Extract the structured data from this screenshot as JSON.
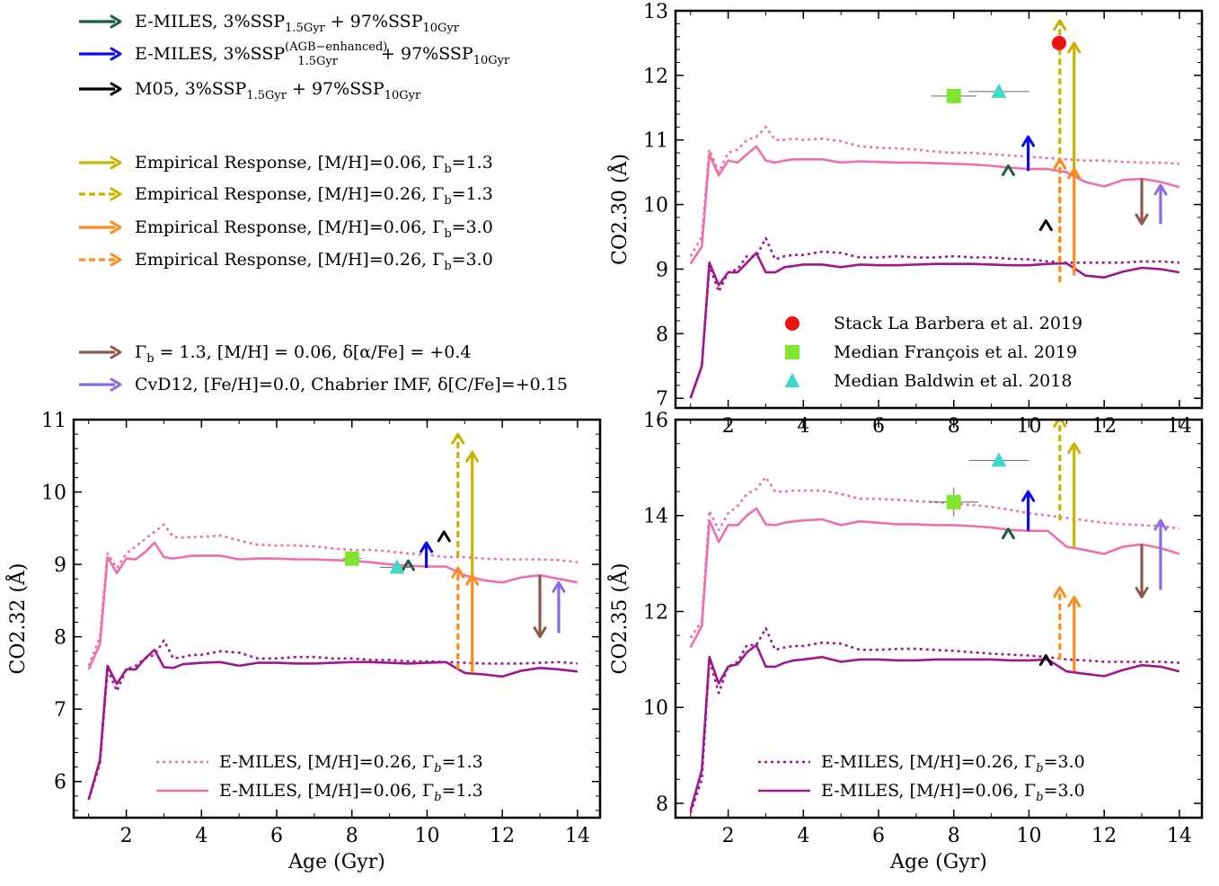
{
  "colors": {
    "emiles_solid_pink": "#f06fab",
    "emiles_dotted_pink": "#f06fab",
    "emiles_solid_purple": "#a0168c",
    "emiles_dotted_purple": "#a0168c",
    "emiles_fraction": "#1a5e3e",
    "emiles_agb": "#0a0aee",
    "m05": "#000000",
    "emp_mh006_g13": "#c8b400",
    "emp_mh026_g13": "#c8b400",
    "emp_mh006_g30": "#ff8c1a",
    "emp_mh026_g30": "#ff8c1a",
    "alpha": "#8b5a4a",
    "cvd": "#8a6ce6",
    "stack": "#ee1111",
    "francois": "#7fe52e",
    "baldwin": "#40d8c8"
  },
  "legend_top": [
    {
      "key": "emiles_fraction",
      "style": "arrow",
      "text": "E-MILES, 3%SSP",
      "sub1": "1.5Gyr",
      "mid": " + 97%SSP",
      "sub2": "10Gyr"
    },
    {
      "key": "emiles_agb",
      "style": "arrow",
      "text": "E-MILES, 3%SSP",
      "sup1": "(AGB−enhanced)",
      "sub1": "1.5Gyr",
      "mid": " + 97%SSP",
      "sub2": "10Gyr"
    },
    {
      "key": "m05",
      "style": "arrow",
      "text": "M05, 3%SSP",
      "sub1": "1.5Gyr",
      "mid": " + 97%SSP",
      "sub2": "10Gyr"
    },
    {
      "key": "emp_mh006_g13",
      "style": "arrow",
      "text": "Empirical Response, [M/H]=0.06, Γ",
      "sub1": "b",
      "mid": "=1.3"
    },
    {
      "key": "emp_mh026_g13",
      "style": "dash",
      "text": "Empirical Response, [M/H]=0.26, Γ",
      "sub1": "b",
      "mid": "=1.3"
    },
    {
      "key": "emp_mh006_g30",
      "style": "arrow",
      "text": "Empirical Response, [M/H]=0.06, Γ",
      "sub1": "b",
      "mid": "=3.0"
    },
    {
      "key": "emp_mh026_g30",
      "style": "dash",
      "text": "Empirical Response, [M/H]=0.26, Γ",
      "sub1": "b",
      "mid": "=3.0"
    },
    {
      "key": "alpha",
      "style": "arrow",
      "text": "Γ",
      "sub1": "b",
      "mid": " = 1.3, [M/H] = 0.06, δ[α/Fe] = +0.4"
    },
    {
      "key": "cvd",
      "style": "arrow",
      "text": "CvD12, [Fe/H]=0.0, Chabrier IMF, δ[C/Fe]=+0.15"
    }
  ],
  "chart_data": [
    {
      "id": "co230",
      "type": "line",
      "ylabel": "CO2.30 (Å)",
      "xlabel": "",
      "xlim": [
        0.6,
        14.6
      ],
      "ylim": [
        6.85,
        13.0
      ],
      "xticks": [
        2,
        4,
        6,
        8,
        10,
        12,
        14
      ],
      "yticks": [
        7,
        8,
        9,
        10,
        11,
        12,
        13
      ],
      "x": [
        1.0,
        1.3,
        1.5,
        1.75,
        2.0,
        2.25,
        2.5,
        2.75,
        3.0,
        3.25,
        3.5,
        3.75,
        4.0,
        4.5,
        5.0,
        5.5,
        6.0,
        6.5,
        7.0,
        7.5,
        8.0,
        8.5,
        9.0,
        9.5,
        10.0,
        10.5,
        11.0,
        11.5,
        12.0,
        12.5,
        13.0,
        13.5,
        14.0
      ],
      "series": [
        {
          "key": "emiles_dotted_pink",
          "dash": true,
          "values": [
            9.2,
            9.5,
            10.85,
            10.5,
            10.8,
            10.85,
            11.0,
            11.05,
            11.2,
            11.0,
            11.0,
            11.02,
            11.0,
            11.02,
            10.98,
            10.9,
            10.88,
            10.87,
            10.85,
            10.82,
            10.8,
            10.8,
            10.78,
            10.76,
            10.74,
            10.72,
            10.7,
            10.68,
            10.68,
            10.66,
            10.65,
            10.65,
            10.63
          ]
        },
        {
          "key": "emiles_solid_pink",
          "dash": false,
          "values": [
            9.08,
            9.35,
            10.78,
            10.45,
            10.68,
            10.65,
            10.78,
            10.9,
            10.68,
            10.65,
            10.68,
            10.7,
            10.7,
            10.7,
            10.65,
            10.67,
            10.66,
            10.65,
            10.65,
            10.64,
            10.63,
            10.62,
            10.6,
            10.57,
            10.55,
            10.55,
            10.5,
            10.35,
            10.28,
            10.38,
            10.4,
            10.35,
            10.27
          ]
        },
        {
          "key": "emiles_dotted_purple",
          "dash": true,
          "values": [
            7.0,
            7.5,
            9.05,
            8.65,
            8.95,
            9.0,
            9.2,
            9.2,
            9.48,
            9.15,
            9.2,
            9.22,
            9.22,
            9.27,
            9.25,
            9.18,
            9.18,
            9.2,
            9.18,
            9.18,
            9.2,
            9.18,
            9.18,
            9.16,
            9.15,
            9.12,
            9.1,
            9.1,
            9.1,
            9.1,
            9.12,
            9.12,
            9.1
          ]
        },
        {
          "key": "emiles_solid_purple",
          "dash": false,
          "values": [
            7.0,
            7.5,
            9.1,
            8.75,
            8.95,
            8.95,
            9.1,
            9.25,
            8.95,
            8.95,
            9.03,
            9.05,
            9.07,
            9.07,
            9.03,
            9.07,
            9.06,
            9.06,
            9.07,
            9.08,
            9.08,
            9.08,
            9.07,
            9.06,
            9.06,
            9.08,
            9.09,
            8.9,
            8.87,
            8.96,
            9.02,
            9.0,
            8.95
          ]
        }
      ],
      "arrows": [
        {
          "key": "emiles_fraction",
          "x": 9.45,
          "y0": 10.4,
          "y1": 10.6,
          "style": "chevron"
        },
        {
          "key": "emiles_agb",
          "x": 9.98,
          "y0": 10.52,
          "y1": 11.05,
          "style": "arrow"
        },
        {
          "key": "m05",
          "x": 10.45,
          "y0": 9.55,
          "y1": 9.75,
          "style": "chevron"
        },
        {
          "key": "emp_mh026_g13",
          "x": 10.82,
          "y0": 9.1,
          "y1": 12.85,
          "style": "dash"
        },
        {
          "key": "emp_mh006_g13",
          "x": 11.2,
          "y0": 10.55,
          "y1": 12.5,
          "style": "arrow"
        },
        {
          "key": "emp_mh026_g30",
          "x": 10.82,
          "y0": 8.8,
          "y1": 10.7,
          "style": "dash"
        },
        {
          "key": "emp_mh006_g30",
          "x": 11.2,
          "y0": 8.9,
          "y1": 10.55,
          "style": "arrow"
        },
        {
          "key": "alpha",
          "x": 13.0,
          "y0": 10.4,
          "y1": 9.7,
          "style": "arrow"
        },
        {
          "key": "cvd",
          "x": 13.5,
          "y0": 9.7,
          "y1": 10.3,
          "style": "arrow"
        }
      ],
      "points": [
        {
          "key": "stack",
          "marker": "circle",
          "x": 10.8,
          "y": 12.5,
          "xerr": 0,
          "yerr": 0
        },
        {
          "key": "francois",
          "marker": "square",
          "x": 8.0,
          "y": 11.68,
          "xerr": 0.6,
          "yerr": 0
        },
        {
          "key": "baldwin",
          "marker": "triangle",
          "x": 9.2,
          "y": 11.75,
          "xerr": 0.8,
          "yerr": 0
        }
      ],
      "legend": [
        {
          "key": "stack",
          "marker": "circle",
          "text": "Stack La Barbera et al. 2019"
        },
        {
          "key": "francois",
          "marker": "square",
          "text": "Median François et al. 2019"
        },
        {
          "key": "baldwin",
          "marker": "triangle",
          "text": "Median Baldwin et al. 2018"
        }
      ]
    },
    {
      "id": "co232",
      "type": "line",
      "ylabel": "CO2.32 (Å)",
      "xlabel": "Age (Gyr)",
      "xlim": [
        0.6,
        14.6
      ],
      "ylim": [
        5.5,
        11.0
      ],
      "xticks": [
        2,
        4,
        6,
        8,
        10,
        12,
        14
      ],
      "yticks": [
        6,
        7,
        8,
        9,
        10,
        11
      ],
      "x": [
        1.0,
        1.3,
        1.5,
        1.75,
        2.0,
        2.25,
        2.5,
        2.75,
        3.0,
        3.25,
        3.5,
        3.75,
        4.0,
        4.5,
        5.0,
        5.5,
        6.0,
        6.5,
        7.0,
        7.5,
        8.0,
        8.5,
        9.0,
        9.5,
        10.0,
        10.5,
        11.0,
        11.5,
        12.0,
        12.5,
        13.0,
        13.5,
        14.0
      ],
      "series": [
        {
          "key": "emiles_dotted_pink",
          "dash": true,
          "values": [
            7.6,
            8.0,
            9.15,
            8.95,
            9.15,
            9.25,
            9.35,
            9.45,
            9.55,
            9.38,
            9.37,
            9.38,
            9.38,
            9.4,
            9.33,
            9.27,
            9.26,
            9.26,
            9.25,
            9.22,
            9.2,
            9.2,
            9.18,
            9.15,
            9.13,
            9.1,
            9.1,
            9.08,
            9.07,
            9.07,
            9.07,
            9.06,
            9.03
          ]
        },
        {
          "key": "emiles_solid_pink",
          "dash": false,
          "values": [
            7.55,
            7.9,
            9.1,
            8.88,
            9.08,
            9.07,
            9.17,
            9.3,
            9.1,
            9.08,
            9.1,
            9.12,
            9.12,
            9.12,
            9.07,
            9.08,
            9.08,
            9.07,
            9.07,
            9.06,
            9.05,
            9.03,
            9.0,
            8.98,
            8.97,
            8.97,
            8.85,
            8.78,
            8.75,
            8.82,
            8.85,
            8.8,
            8.75
          ]
        },
        {
          "key": "emiles_dotted_purple",
          "dash": true,
          "values": [
            5.75,
            6.25,
            7.55,
            7.25,
            7.55,
            7.6,
            7.7,
            7.75,
            7.95,
            7.7,
            7.72,
            7.75,
            7.75,
            7.8,
            7.78,
            7.7,
            7.7,
            7.72,
            7.72,
            7.7,
            7.7,
            7.68,
            7.68,
            7.66,
            7.66,
            7.65,
            7.64,
            7.63,
            7.63,
            7.63,
            7.64,
            7.65,
            7.63
          ]
        },
        {
          "key": "emiles_solid_purple",
          "dash": false,
          "values": [
            5.75,
            6.3,
            7.6,
            7.35,
            7.55,
            7.55,
            7.7,
            7.82,
            7.58,
            7.57,
            7.62,
            7.63,
            7.64,
            7.65,
            7.6,
            7.64,
            7.64,
            7.63,
            7.63,
            7.64,
            7.65,
            7.65,
            7.64,
            7.63,
            7.64,
            7.65,
            7.5,
            7.48,
            7.45,
            7.53,
            7.57,
            7.55,
            7.52
          ]
        }
      ],
      "arrows": [
        {
          "key": "emiles_fraction",
          "x": 9.5,
          "y0": 8.85,
          "y1": 9.05,
          "style": "chevron"
        },
        {
          "key": "emiles_agb",
          "x": 9.98,
          "y0": 8.95,
          "y1": 9.3,
          "style": "arrow"
        },
        {
          "key": "m05",
          "x": 10.45,
          "y0": 9.25,
          "y1": 9.45,
          "style": "chevron"
        },
        {
          "key": "emp_mh026_g13",
          "x": 10.82,
          "y0": 9.1,
          "y1": 10.8,
          "style": "dash"
        },
        {
          "key": "emp_mh006_g13",
          "x": 11.2,
          "y0": 8.85,
          "y1": 10.55,
          "style": "arrow"
        },
        {
          "key": "emp_mh026_g30",
          "x": 10.82,
          "y0": 7.55,
          "y1": 8.95,
          "style": "dash"
        },
        {
          "key": "emp_mh006_g30",
          "x": 11.2,
          "y0": 7.5,
          "y1": 8.85,
          "style": "arrow"
        },
        {
          "key": "alpha",
          "x": 13.0,
          "y0": 8.85,
          "y1": 8.0,
          "style": "arrow"
        },
        {
          "key": "cvd",
          "x": 13.5,
          "y0": 8.05,
          "y1": 8.75,
          "style": "arrow"
        }
      ],
      "points": [
        {
          "key": "francois",
          "marker": "square",
          "x": 8.0,
          "y": 9.08,
          "xerr": 0.25,
          "yerr": 0
        },
        {
          "key": "baldwin",
          "marker": "triangle",
          "x": 9.2,
          "y": 8.96,
          "xerr": 0.45,
          "yerr": 0
        }
      ],
      "legend": [
        {
          "key": "emiles_dotted_pink",
          "dash": true,
          "text": "E-MILES, [M/H]=0.26, Γ",
          "sub": "b",
          "tail": "=1.3"
        },
        {
          "key": "emiles_solid_pink",
          "dash": false,
          "text": "E-MILES, [M/H]=0.06, Γ",
          "sub": "b",
          "tail": "=1.3"
        }
      ]
    },
    {
      "id": "co235",
      "type": "line",
      "ylabel": "CO2.35 (Å)",
      "xlabel": "Age (Gyr)",
      "xlim": [
        0.6,
        14.6
      ],
      "ylim": [
        7.7,
        16.0
      ],
      "xticks": [
        2,
        4,
        6,
        8,
        10,
        12,
        14
      ],
      "yticks": [
        8,
        10,
        12,
        14,
        16
      ],
      "x": [
        1.0,
        1.3,
        1.5,
        1.75,
        2.0,
        2.25,
        2.5,
        2.75,
        3.0,
        3.25,
        3.5,
        3.75,
        4.0,
        4.5,
        5.0,
        5.5,
        6.0,
        6.5,
        7.0,
        7.5,
        8.0,
        8.5,
        9.0,
        9.5,
        10.0,
        10.5,
        11.0,
        11.5,
        12.0,
        12.5,
        13.0,
        13.5,
        14.0
      ],
      "series": [
        {
          "key": "emiles_dotted_pink",
          "dash": true,
          "values": [
            11.45,
            11.8,
            14.1,
            13.7,
            14.05,
            14.2,
            14.45,
            14.55,
            14.8,
            14.5,
            14.5,
            14.52,
            14.52,
            14.52,
            14.45,
            14.35,
            14.35,
            14.33,
            14.3,
            14.28,
            14.25,
            14.22,
            14.18,
            14.12,
            14.05,
            14.0,
            13.95,
            13.9,
            13.85,
            13.82,
            13.8,
            13.78,
            13.73
          ]
        },
        {
          "key": "emiles_solid_pink",
          "dash": false,
          "values": [
            11.25,
            11.7,
            13.9,
            13.45,
            13.8,
            13.8,
            14.0,
            14.15,
            13.82,
            13.8,
            13.85,
            13.88,
            13.9,
            13.92,
            13.8,
            13.88,
            13.85,
            13.82,
            13.82,
            13.8,
            13.8,
            13.78,
            13.75,
            13.7,
            13.68,
            13.68,
            13.35,
            13.28,
            13.2,
            13.35,
            13.4,
            13.32,
            13.2
          ]
        },
        {
          "key": "emiles_dotted_purple",
          "dash": true,
          "values": [
            7.8,
            8.5,
            11.0,
            10.3,
            10.85,
            10.95,
            11.3,
            11.3,
            11.65,
            11.2,
            11.25,
            11.28,
            11.28,
            11.35,
            11.33,
            11.2,
            11.2,
            11.22,
            11.22,
            11.2,
            11.18,
            11.15,
            11.12,
            11.1,
            11.08,
            11.05,
            11.0,
            10.98,
            10.95,
            10.95,
            10.95,
            10.95,
            10.93
          ]
        },
        {
          "key": "emiles_solid_purple",
          "dash": false,
          "values": [
            7.85,
            8.7,
            11.05,
            10.5,
            10.85,
            10.9,
            11.15,
            11.3,
            10.85,
            10.85,
            10.93,
            10.98,
            11.0,
            11.05,
            10.95,
            11.0,
            11.0,
            10.98,
            10.98,
            11.0,
            11.0,
            11.0,
            11.0,
            10.98,
            10.98,
            11.0,
            10.75,
            10.7,
            10.65,
            10.78,
            10.88,
            10.85,
            10.75
          ]
        }
      ],
      "arrows": [
        {
          "key": "emiles_fraction",
          "x": 9.45,
          "y0": 13.5,
          "y1": 13.72,
          "style": "chevron"
        },
        {
          "key": "emiles_agb",
          "x": 9.98,
          "y0": 13.68,
          "y1": 14.5,
          "style": "arrow"
        },
        {
          "key": "m05",
          "x": 10.45,
          "y0": 10.85,
          "y1": 11.08,
          "style": "chevron"
        },
        {
          "key": "emp_mh026_g13",
          "x": 10.82,
          "y0": 13.9,
          "y1": 16.05,
          "style": "dash"
        },
        {
          "key": "emp_mh006_g13",
          "x": 11.2,
          "y0": 13.35,
          "y1": 15.5,
          "style": "arrow"
        },
        {
          "key": "emp_mh026_g30",
          "x": 10.82,
          "y0": 11.0,
          "y1": 12.5,
          "style": "dash"
        },
        {
          "key": "emp_mh006_g30",
          "x": 11.2,
          "y0": 10.75,
          "y1": 12.3,
          "style": "arrow"
        },
        {
          "key": "alpha",
          "x": 13.0,
          "y0": 13.4,
          "y1": 12.3,
          "style": "arrow"
        },
        {
          "key": "cvd",
          "x": 13.5,
          "y0": 12.45,
          "y1": 13.9,
          "style": "arrow"
        }
      ],
      "points": [
        {
          "key": "francois",
          "marker": "square",
          "x": 8.0,
          "y": 14.28,
          "xerr": 0.65,
          "yerr": 0.3
        },
        {
          "key": "baldwin",
          "marker": "triangle",
          "x": 9.2,
          "y": 15.15,
          "xerr": 0.8,
          "yerr": 0
        }
      ],
      "legend": [
        {
          "key": "emiles_dotted_purple",
          "dash": true,
          "text": "E-MILES, [M/H]=0.26, Γ",
          "sub": "b",
          "tail": "=3.0"
        },
        {
          "key": "emiles_solid_purple",
          "dash": false,
          "text": "E-MILES, [M/H]=0.06, Γ",
          "sub": "b",
          "tail": "=3.0"
        }
      ]
    }
  ]
}
